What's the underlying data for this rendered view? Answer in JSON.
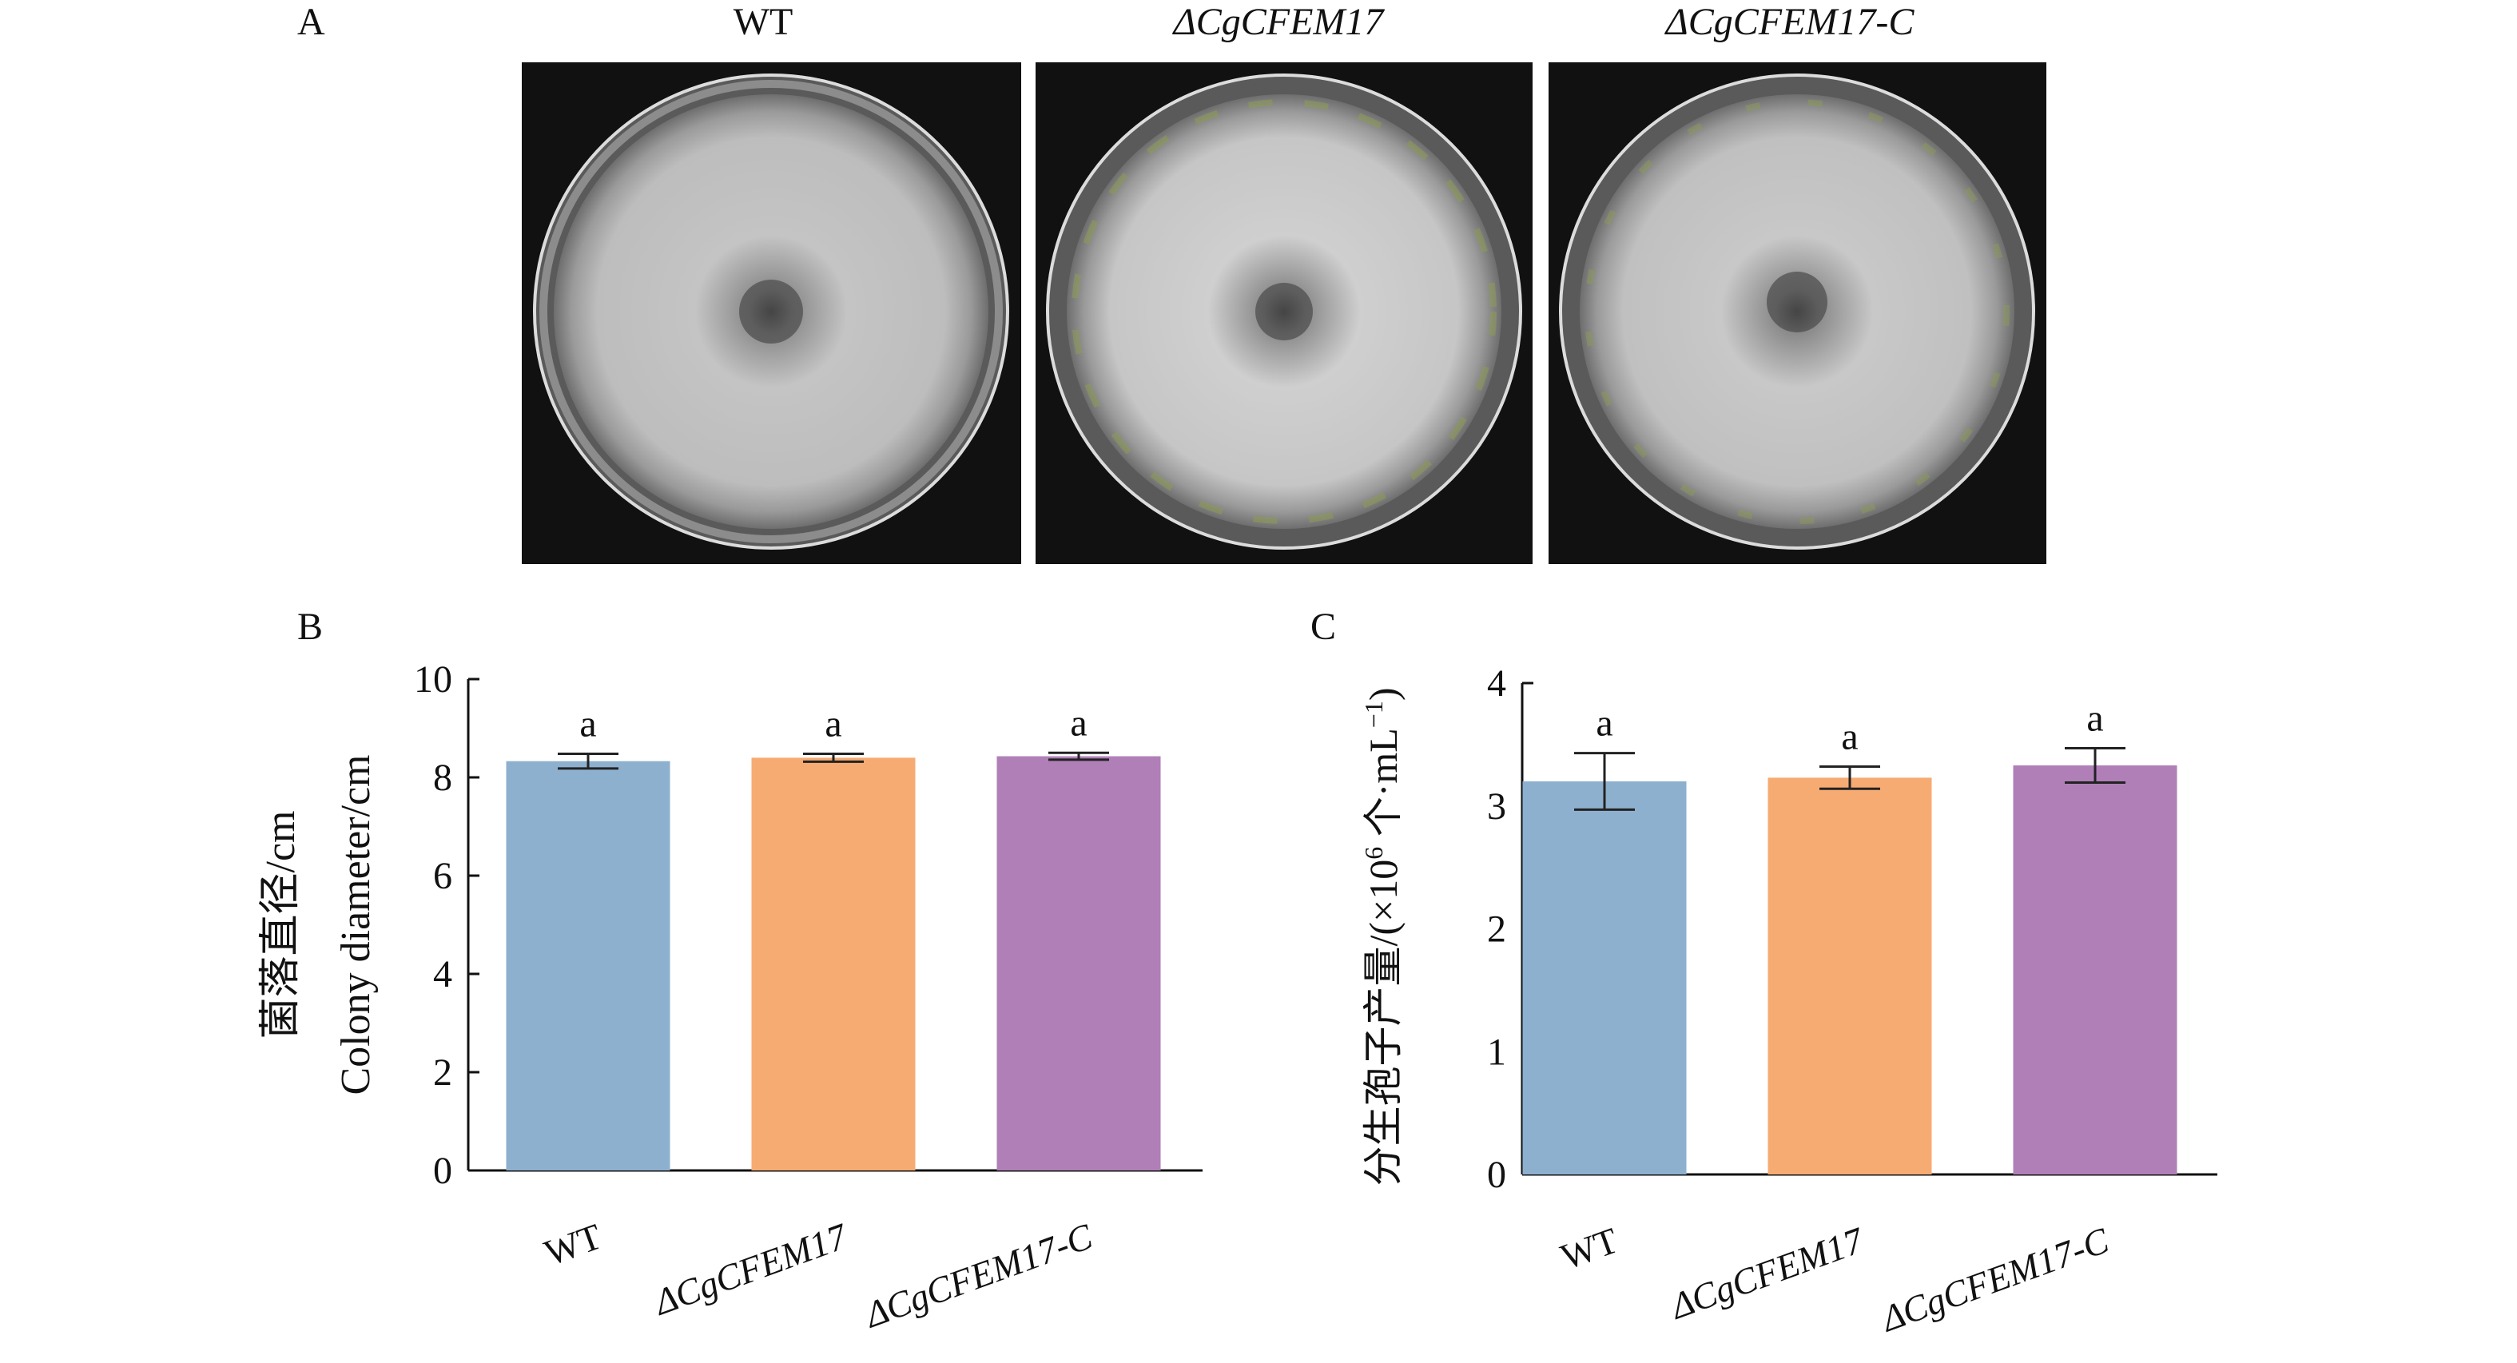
{
  "panel_a": {
    "letter": "A",
    "images": [
      {
        "title": "WT",
        "italic": false
      },
      {
        "title": "ΔCgCFEM17",
        "italic": true
      },
      {
        "title": "ΔCgCFEM17-C",
        "italic": true
      }
    ]
  },
  "chart_data": [
    {
      "panel": "B",
      "type": "bar",
      "categories": [
        "WT",
        "ΔCgCFEM17",
        "ΔCgCFEM17-C"
      ],
      "values": [
        8.33,
        8.4,
        8.43
      ],
      "errors": [
        0.15,
        0.08,
        0.07
      ],
      "labels": [
        "a",
        "a",
        "a"
      ],
      "colors": [
        "#8EB0CF",
        "#F6AB72",
        "#B07FB8"
      ],
      "ylabel_cn": "菌落直径/cm",
      "ylabel_en": "Colony diameter/cm",
      "ylim": [
        0,
        10
      ],
      "yticks": [
        "0",
        "2",
        "4",
        "6",
        "8",
        "10"
      ],
      "grid": false
    },
    {
      "panel": "C",
      "type": "bar",
      "categories": [
        "WT",
        "ΔCgCFEM17",
        "ΔCgCFEM17-C"
      ],
      "values": [
        3.2,
        3.23,
        3.33
      ],
      "errors": [
        0.23,
        0.09,
        0.14
      ],
      "labels": [
        "a",
        "a",
        "a"
      ],
      "colors": [
        "#8EB0CF",
        "#F6AB72",
        "#B07FB8"
      ],
      "ylabel_main": "分生孢子产量/(×10",
      "ylabel_sup1": "6",
      "ylabel_mid": " 个·mL",
      "ylabel_sup2": "−1",
      "ylabel_end": ")",
      "ylim": [
        0,
        4
      ],
      "yticks": [
        "0",
        "1",
        "2",
        "3",
        "4"
      ],
      "grid": false
    }
  ]
}
